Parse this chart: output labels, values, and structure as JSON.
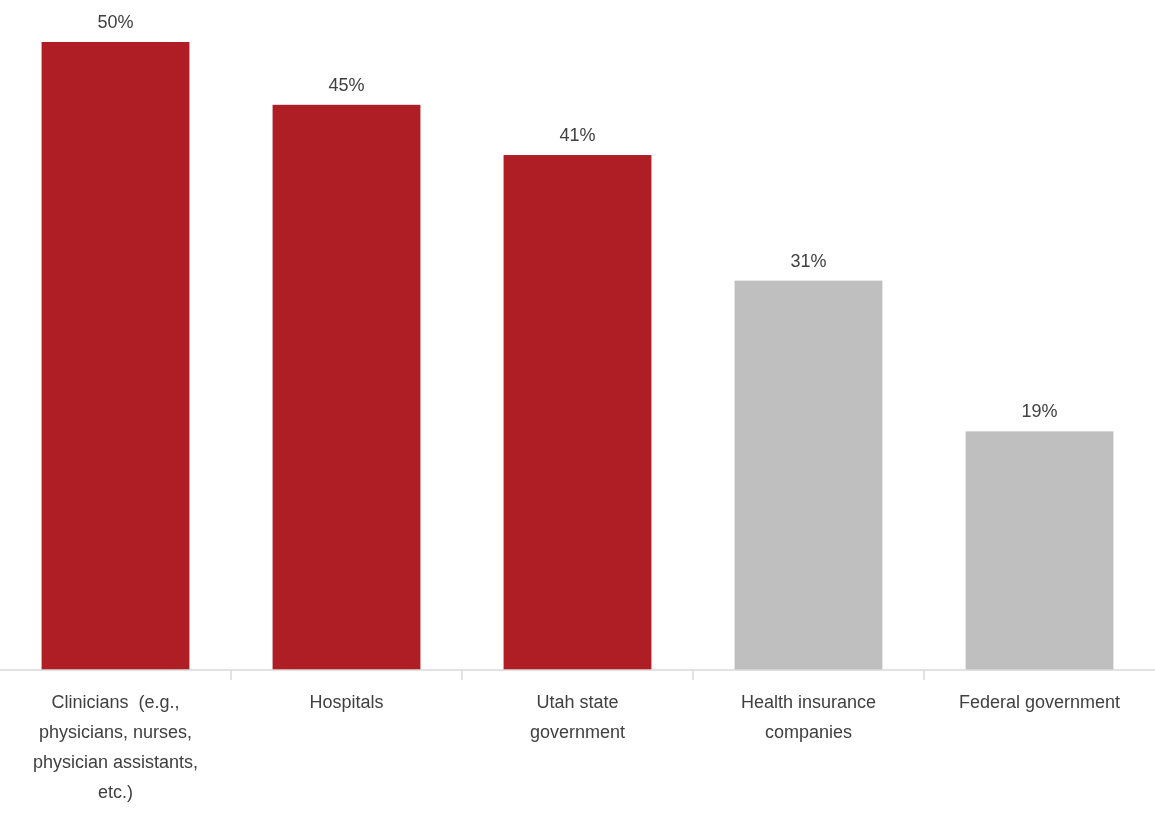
{
  "chart_data": {
    "type": "bar",
    "categories": [
      "Clinicians  (e.g., physicians, nurses, physician assistants, etc.)",
      "Hospitals",
      "Utah state government",
      "Health insurance companies",
      "Federal government"
    ],
    "values": [
      50,
      45,
      41,
      31,
      19
    ],
    "colors": [
      "#ae1e24",
      "#ae1e24",
      "#ae1e24",
      "#bfbfbf",
      "#bfbfbf"
    ],
    "value_labels": [
      "50%",
      "45%",
      "41%",
      "31%",
      "19%"
    ]
  }
}
